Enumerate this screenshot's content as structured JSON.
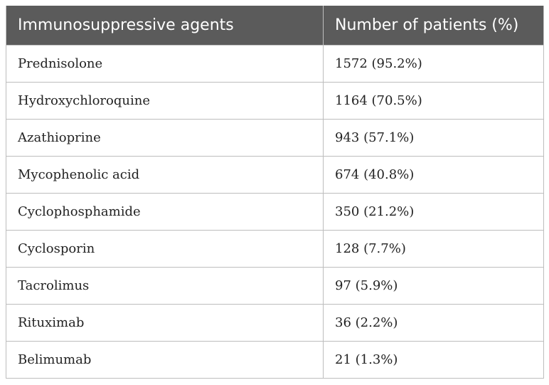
{
  "table": {
    "headers": [
      "Immunosuppressive agents",
      "Number of patients (%)"
    ],
    "rows": [
      [
        "Prednisolone",
        "1572 (95.2%)"
      ],
      [
        "Hydroxychloroquine",
        "1164 (70.5%)"
      ],
      [
        "Azathioprine",
        "943 (57.1%)"
      ],
      [
        "Mycophenolic acid",
        "674 (40.8%)"
      ],
      [
        "Cyclophosphamide",
        "350 (21.2%)"
      ],
      [
        "Cyclosporin",
        "128 (7.7%)"
      ],
      [
        "Tacrolimus",
        "97 (5.9%)"
      ],
      [
        "Rituximab",
        "36 (2.2%)"
      ],
      [
        "Belimumab",
        "21 (1.3%)"
      ]
    ]
  },
  "colors": {
    "header_bg": "#5b5b5b",
    "header_text": "#ffffff",
    "border": "#bdbdbd"
  }
}
